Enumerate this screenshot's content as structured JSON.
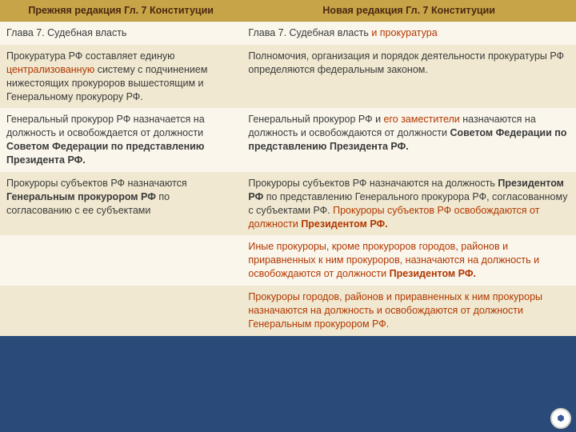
{
  "table": {
    "headers": {
      "left": "Прежняя редакция  Гл. 7 Конституции",
      "right": "Новая редакция Гл. 7 Конституции"
    },
    "rows": [
      {
        "left_plain": "Глава 7. Судебная власть",
        "right_plain": "Глава 7. Судебная власть ",
        "right_hl": "и прокуратура"
      },
      {
        "left_a": "Прокуратура РФ составляет единую ",
        "left_hl": "централизованную",
        "left_b": " систему с подчинением нижестоящих прокуроров вышестоящим и Генеральному прокурору РФ.",
        "right_a": "Полномочия, организация и порядок деятельности прокуратуры РФ определяются федеральным законом."
      },
      {
        "left_a": "Генеральный прокурор РФ назначается на должность и освобождается от должности ",
        "left_bold": "Советом Федерации по представлению Президента РФ.",
        "right_a": "Генеральный прокурор РФ и ",
        "right_hl": "его заместители",
        "right_b": " назначаются на должность и освобождаются от должности ",
        "right_bold": "Советом Федерации по представлению Президента РФ."
      },
      {
        "left_a": "Прокуроры субъектов РФ назначаются ",
        "left_bold": "Генеральным прокурором РФ",
        "left_b": " по согласованию с ее субъектами",
        "right_a": "Прокуроры субъектов РФ назначаются на должность ",
        "right_bold1": "Президентом РФ",
        "right_b": " по представлению Генерального прокурора РФ, согласованному с субъектами РФ. ",
        "right_hl": "Прокуроры субъектов РФ освобождаются от должности ",
        "right_bold2": "Президентом РФ."
      },
      {
        "right_a": "Иные прокуроры, кроме прокуроров городов, районов и приравненных к ним прокуроров, назначаются на должность и освобождаются от должности ",
        "right_bold": "Президентом РФ."
      },
      {
        "right_a": "Прокуроры городов, районов и приравненных к ним прокуроры назначаются на должность и освобождаются от должности Генеральным прокурором РФ."
      }
    ]
  },
  "colors": {
    "header_bg": "#c8a448",
    "row_light": "#faf6ec",
    "row_dark": "#f0e8d0",
    "highlight": "#b23700",
    "page_bg": "#2a4a7a"
  }
}
